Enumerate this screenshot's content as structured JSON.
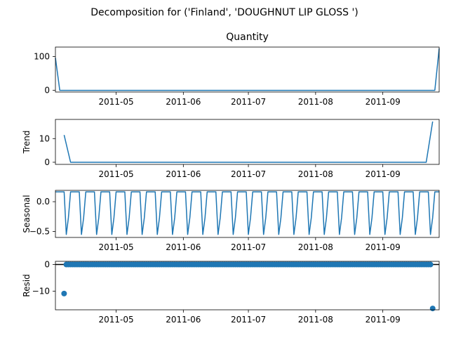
{
  "figure": {
    "suptitle": "Decomposition for ('Finland', 'DOUGHNUT LIP GLOSS ')"
  },
  "colors": {
    "line": "#1f77b4",
    "axis": "#000000",
    "background": "#ffffff"
  },
  "x_ticks": [
    "2011-05",
    "2011-06",
    "2011-07",
    "2011-08",
    "2011-09"
  ],
  "chart_data": [
    {
      "type": "line",
      "title": "Quantity",
      "ylabel": "",
      "xlim": [
        "2011-04-03",
        "2011-09-27"
      ],
      "ylim": [
        -5,
        128
      ],
      "yticks": [
        0,
        100
      ],
      "ytick_labels": [
        "0",
        "100"
      ],
      "series": [
        {
          "x": [
            "2011-04-03",
            "2011-04-05",
            "2011-09-25",
            "2011-09-27"
          ],
          "y": [
            96,
            0,
            0,
            124
          ]
        }
      ]
    },
    {
      "type": "line",
      "title": "",
      "ylabel": "Trend",
      "xlim": [
        "2011-04-03",
        "2011-09-27"
      ],
      "ylim": [
        -0.9,
        18.1
      ],
      "yticks": [
        0,
        10
      ],
      "ytick_labels": [
        "0",
        "10"
      ],
      "series": [
        {
          "x": [
            "2011-04-07",
            "2011-04-10",
            "2011-09-21",
            "2011-09-24"
          ],
          "y": [
            11.5,
            0,
            0,
            17.2
          ]
        }
      ]
    },
    {
      "type": "line",
      "title": "",
      "ylabel": "Seasonal",
      "xlim": [
        "2011-04-03",
        "2011-09-27"
      ],
      "ylim": [
        -0.6,
        0.19
      ],
      "yticks": [
        0,
        -0.5
      ],
      "ytick_labels": [
        "0.0",
        "−0.5"
      ],
      "period_days": 7,
      "pattern": [
        0.165,
        0.165,
        0.165,
        0.165,
        0.165,
        -0.55,
        -0.27
      ]
    },
    {
      "type": "scatter",
      "title": "",
      "ylabel": "Resid",
      "xlim": [
        "2011-04-03",
        "2011-09-27"
      ],
      "ylim": [
        -17,
        1.2
      ],
      "yticks": [
        0,
        -10
      ],
      "ytick_labels": [
        "0",
        "−10"
      ],
      "zero_line": true,
      "outliers": [
        {
          "x": "2011-04-07",
          "y": -10.9
        },
        {
          "x": "2011-09-24",
          "y": -16.5
        }
      ],
      "baseline_range": [
        "2011-04-08",
        "2011-09-23"
      ]
    }
  ]
}
